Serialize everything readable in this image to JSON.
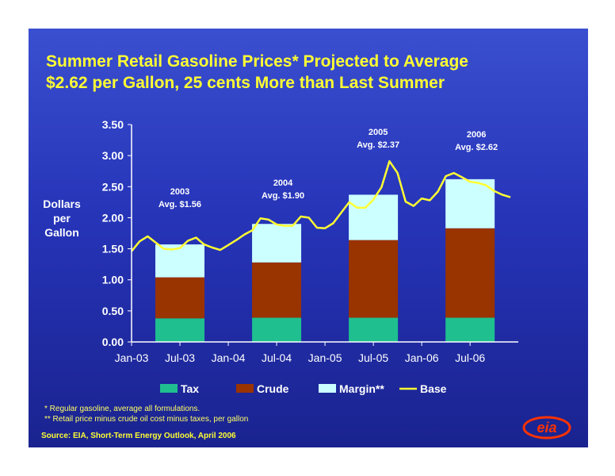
{
  "title_line1": "Summer Retail Gasoline Prices* Projected to Average",
  "title_line2": "$2.62 per Gallon, 25 cents More than Last Summer",
  "footnote1": "* Regular gasoline, average all formulations.",
  "footnote2": "** Retail price minus crude oil cost minus taxes, per gallon",
  "source": "Source:  EIA, Short-Term Energy Outlook, April 2006",
  "logo_text": "eia",
  "colors": {
    "tax": "#1fbf8f",
    "crude": "#993300",
    "margin": "#ccffff",
    "base": "#ffff33",
    "text": "#ffffff",
    "title": "#ffff33"
  },
  "chart_data": {
    "type": "bar",
    "title": "Summer Retail Gasoline Prices* Projected to Average $2.62 per Gallon, 25 cents More than Last Summer",
    "ylabel": "Dollars per Gallon",
    "ylim": [
      0,
      3.5
    ],
    "yticks": [
      "0.00",
      "0.50",
      "1.00",
      "1.50",
      "2.00",
      "2.50",
      "3.00",
      "3.50"
    ],
    "xticks": [
      "Jan-03",
      "Jul-03",
      "Jan-04",
      "Jul-04",
      "Jan-05",
      "Jul-05",
      "Jan-06",
      "Jul-06"
    ],
    "grid": false,
    "legend_placement": "bottom",
    "bars": [
      {
        "period": "2003",
        "month": "Jul-03",
        "year_label": "2003",
        "avg_label": "Avg. $1.56",
        "tax": 0.38,
        "crude": 0.66,
        "margin": 0.53
      },
      {
        "period": "2004",
        "month": "Jul-04",
        "year_label": "2004",
        "avg_label": "Avg. $1.90",
        "tax": 0.39,
        "crude": 0.89,
        "margin": 0.62
      },
      {
        "period": "2005",
        "month": "Jul-05",
        "year_label": "2005",
        "avg_label": "Avg. $2.37",
        "tax": 0.39,
        "crude": 1.25,
        "margin": 0.73
      },
      {
        "period": "2006",
        "month": "Jul-06",
        "year_label": "2006",
        "avg_label": "Avg. $2.62",
        "tax": 0.39,
        "crude": 1.44,
        "margin": 0.79
      }
    ],
    "series": [
      {
        "name": "Tax",
        "kind": "bar"
      },
      {
        "name": "Crude",
        "kind": "bar"
      },
      {
        "name": "Margin**",
        "kind": "bar"
      },
      {
        "name": "Base",
        "kind": "line"
      }
    ],
    "base_line": [
      {
        "x": "Jan-03",
        "y": 1.46
      },
      {
        "x": "Feb-03",
        "y": 1.62
      },
      {
        "x": "Mar-03",
        "y": 1.7
      },
      {
        "x": "Apr-03",
        "y": 1.6
      },
      {
        "x": "May-03",
        "y": 1.5
      },
      {
        "x": "Jun-03",
        "y": 1.49
      },
      {
        "x": "Jul-03",
        "y": 1.51
      },
      {
        "x": "Aug-03",
        "y": 1.63
      },
      {
        "x": "Sep-03",
        "y": 1.68
      },
      {
        "x": "Oct-03",
        "y": 1.57
      },
      {
        "x": "Nov-03",
        "y": 1.52
      },
      {
        "x": "Dec-03",
        "y": 1.48
      },
      {
        "x": "Jan-04",
        "y": 1.56
      },
      {
        "x": "Feb-04",
        "y": 1.64
      },
      {
        "x": "Mar-04",
        "y": 1.73
      },
      {
        "x": "Apr-04",
        "y": 1.8
      },
      {
        "x": "May-04",
        "y": 1.99
      },
      {
        "x": "Jun-04",
        "y": 1.97
      },
      {
        "x": "Jul-04",
        "y": 1.89
      },
      {
        "x": "Aug-04",
        "y": 1.87
      },
      {
        "x": "Sep-04",
        "y": 1.87
      },
      {
        "x": "Oct-04",
        "y": 2.02
      },
      {
        "x": "Nov-04",
        "y": 2.0
      },
      {
        "x": "Dec-04",
        "y": 1.84
      },
      {
        "x": "Jan-05",
        "y": 1.83
      },
      {
        "x": "Feb-05",
        "y": 1.91
      },
      {
        "x": "Mar-05",
        "y": 2.08
      },
      {
        "x": "Apr-05",
        "y": 2.25
      },
      {
        "x": "May-05",
        "y": 2.16
      },
      {
        "x": "Jun-05",
        "y": 2.16
      },
      {
        "x": "Jul-05",
        "y": 2.29
      },
      {
        "x": "Aug-05",
        "y": 2.49
      },
      {
        "x": "Sep-05",
        "y": 2.91
      },
      {
        "x": "Oct-05",
        "y": 2.72
      },
      {
        "x": "Nov-05",
        "y": 2.26
      },
      {
        "x": "Dec-05",
        "y": 2.19
      },
      {
        "x": "Jan-06",
        "y": 2.31
      },
      {
        "x": "Feb-06",
        "y": 2.28
      },
      {
        "x": "Mar-06",
        "y": 2.42
      },
      {
        "x": "Apr-06",
        "y": 2.67
      },
      {
        "x": "May-06",
        "y": 2.72
      },
      {
        "x": "Jun-06",
        "y": 2.65
      },
      {
        "x": "Jul-06",
        "y": 2.58
      },
      {
        "x": "Aug-06",
        "y": 2.56
      },
      {
        "x": "Sep-06",
        "y": 2.52
      },
      {
        "x": "Oct-06",
        "y": 2.43
      },
      {
        "x": "Nov-06",
        "y": 2.37
      },
      {
        "x": "Dec-06",
        "y": 2.33
      }
    ]
  }
}
